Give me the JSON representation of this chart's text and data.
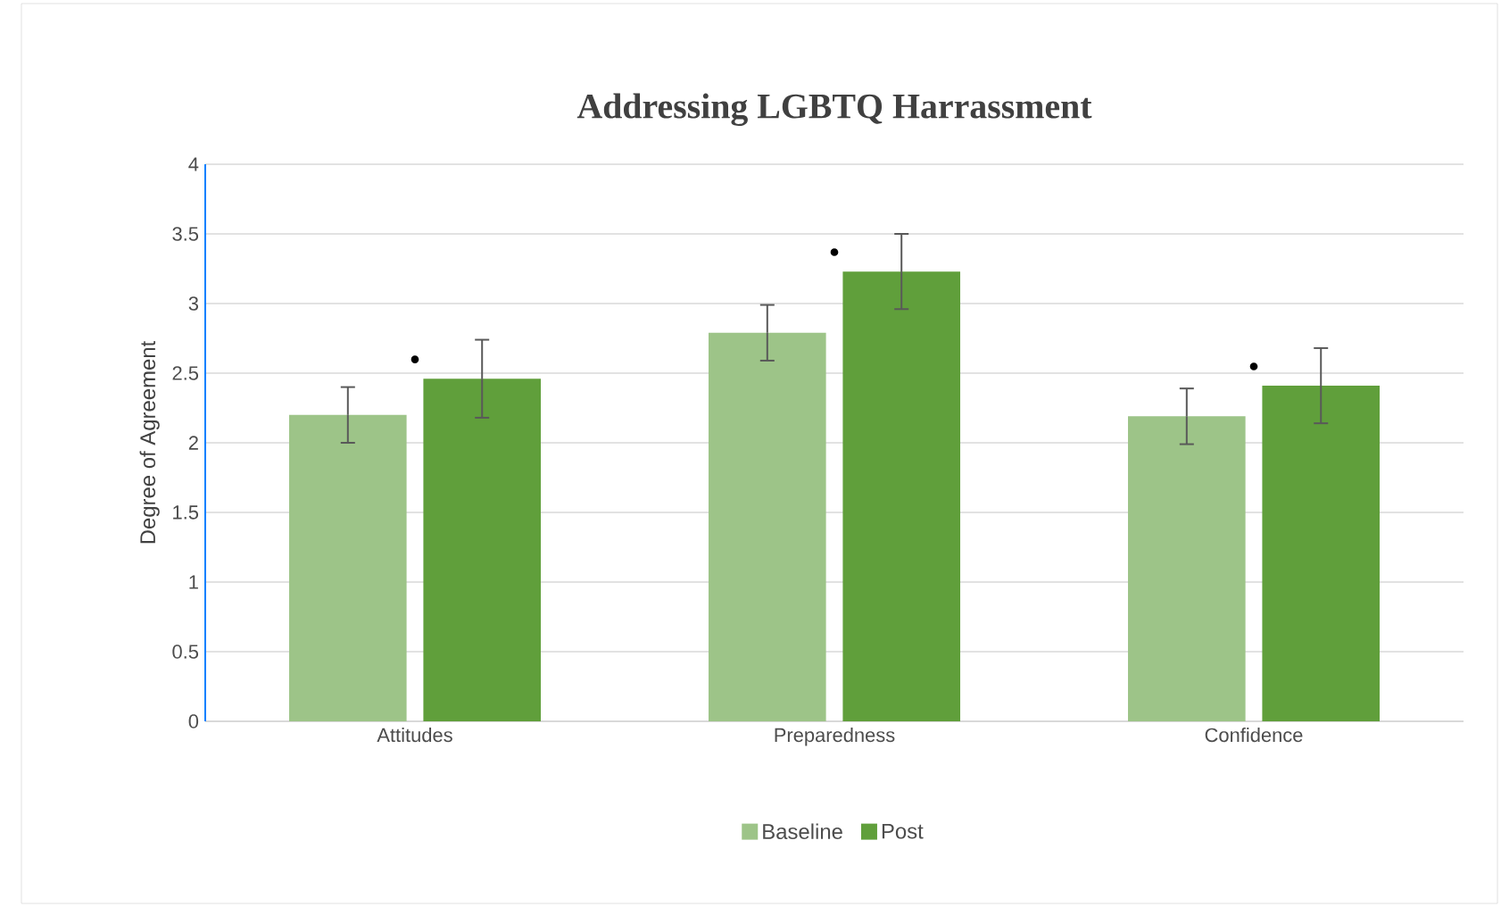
{
  "chart_data": {
    "type": "bar",
    "title": "Addressing LGBTQ Harrassment",
    "ylabel": "Degree of Agreement",
    "categories": [
      "Attitudes",
      "Preparedness",
      "Confidence"
    ],
    "series": [
      {
        "name": "Baseline",
        "color": "#9dc488",
        "values": [
          2.2,
          2.79,
          2.19
        ],
        "errors": [
          0.2,
          0.2,
          0.2
        ]
      },
      {
        "name": "Post",
        "color": "#609f3b",
        "values": [
          2.46,
          3.23,
          2.41
        ],
        "errors": [
          0.28,
          0.27,
          0.27
        ]
      }
    ],
    "ylim": [
      0,
      4
    ],
    "yticks": [
      0,
      0.5,
      1,
      1.5,
      2,
      2.5,
      3,
      3.5,
      4
    ],
    "grid": "y",
    "legend": "bottom",
    "annotations": [
      "•",
      "•",
      "•"
    ]
  }
}
